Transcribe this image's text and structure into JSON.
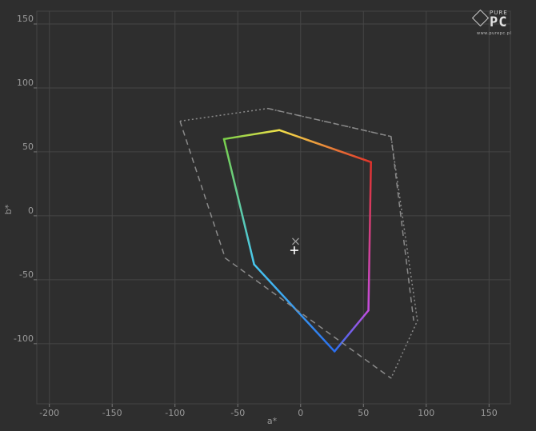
{
  "chart_data": {
    "type": "line",
    "title": "",
    "xlabel": "a*",
    "ylabel": "b*",
    "xlim": [
      -210,
      167
    ],
    "ylim": [
      -147,
      160
    ],
    "x_ticks": [
      -200,
      -150,
      -100,
      -50,
      0,
      50,
      100,
      150
    ],
    "y_ticks": [
      -100,
      -50,
      0,
      50,
      100,
      150
    ],
    "grid": true,
    "series": [
      {
        "style": "solid-gradient",
        "points": [
          [
            -61,
            60
          ],
          [
            -17,
            67
          ],
          [
            56,
            42
          ],
          [
            54,
            -74
          ],
          [
            27,
            -106
          ],
          [
            -37,
            -38
          ],
          [
            -61,
            60
          ]
        ],
        "colors": [
          "#7ad04a",
          "#f2e24a",
          "#e0322a",
          "#c44de0",
          "#2a6ff0",
          "#48c8f0",
          "#7ad04a"
        ]
      },
      {
        "style": "dotted",
        "points": [
          [
            -96,
            74
          ],
          [
            -26,
            84
          ],
          [
            72,
            62
          ],
          [
            93,
            -82
          ],
          [
            72,
            -127
          ]
        ],
        "color": "#8a8a8a"
      },
      {
        "style": "dashed",
        "points": [
          [
            -96,
            74
          ],
          [
            -60,
            -33
          ],
          [
            72,
            -127
          ]
        ],
        "color": "#8a8a8a"
      },
      {
        "style": "dashed",
        "points": [
          [
            -26,
            84
          ],
          [
            72,
            62
          ],
          [
            90,
            -82
          ]
        ],
        "color": "#8a8a8a"
      }
    ],
    "markers": [
      {
        "symbol": "x",
        "point": [
          -4,
          -20
        ],
        "color": "#9a9a9a"
      },
      {
        "symbol": "+",
        "point": [
          -5,
          -27
        ],
        "color": "#ffffff"
      }
    ]
  },
  "logo": {
    "top": "PURE",
    "main": "PC",
    "sub": "www.purepc.pl"
  }
}
